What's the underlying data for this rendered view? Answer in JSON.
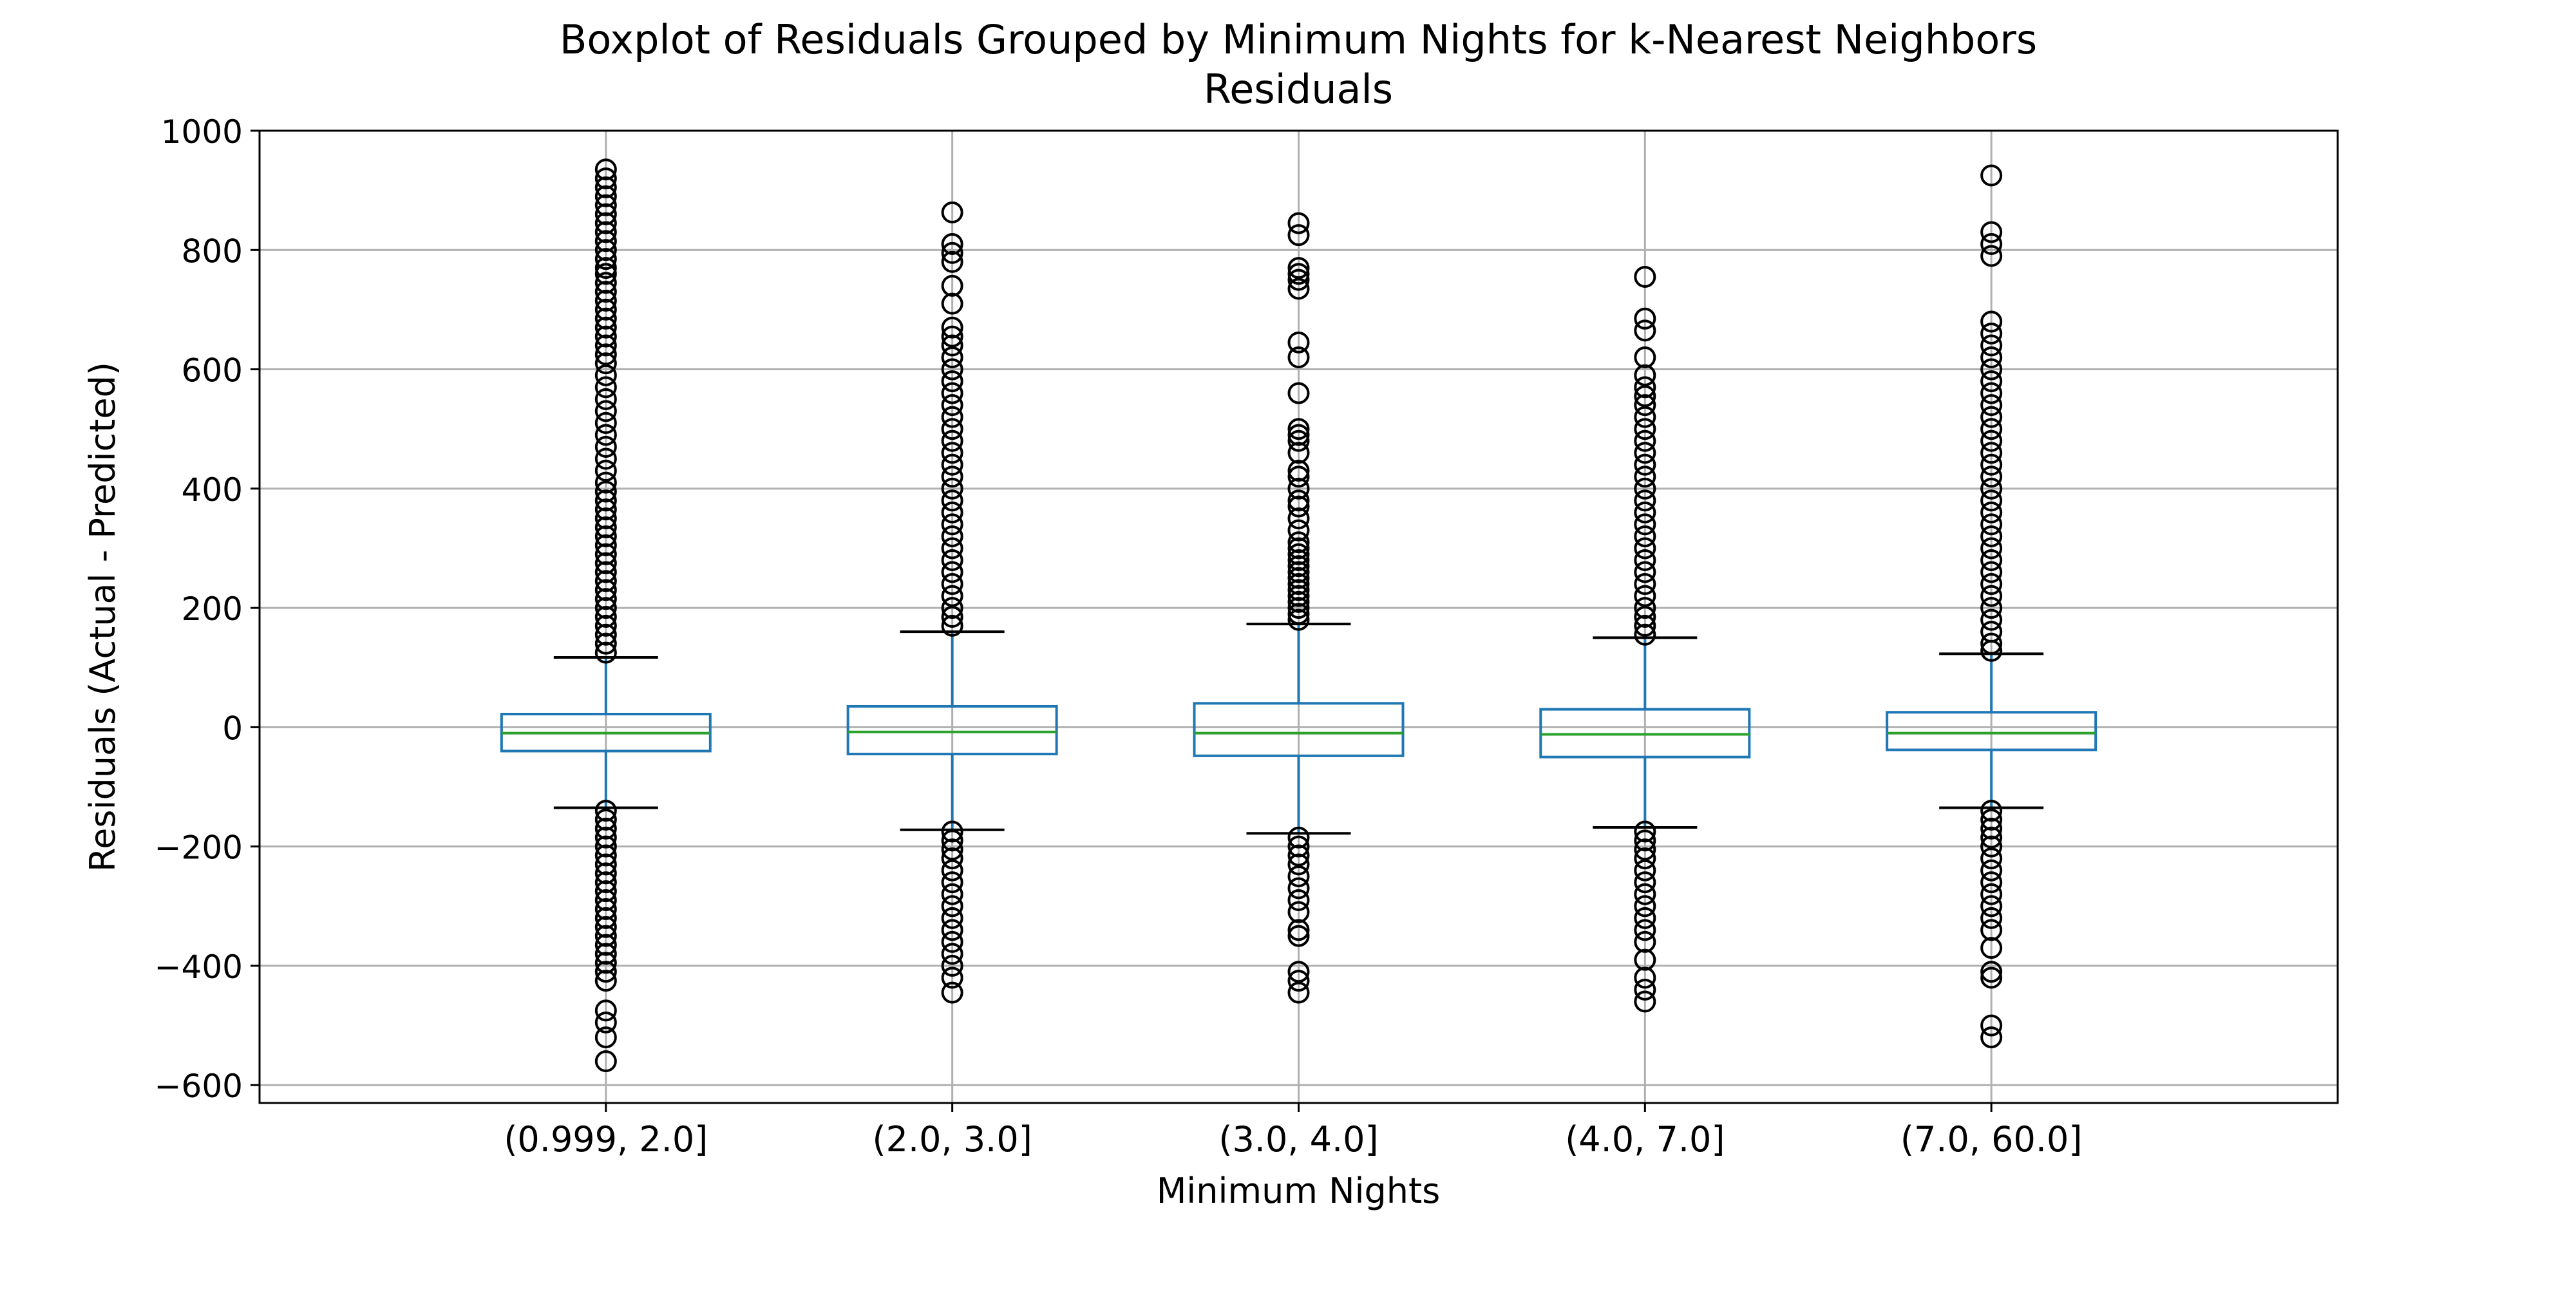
{
  "chart_data": {
    "type": "boxplot",
    "title": "Boxplot of Residuals Grouped by Minimum Nights for k-Nearest Neighbors",
    "subtitle": "Residuals",
    "xlabel": "Minimum Nights",
    "ylabel": "Residuals (Actual - Predicted)",
    "ylim": [
      -630,
      1000
    ],
    "y_ticks": [
      -600,
      -400,
      -200,
      0,
      200,
      400,
      600,
      800,
      1000
    ],
    "y_tick_labels": [
      "−600",
      "−400",
      "−200",
      "0",
      "200",
      "400",
      "600",
      "800",
      "1000"
    ],
    "grid": true,
    "categories": [
      "(0.999, 2.0]",
      "(2.0, 3.0]",
      "(3.0, 4.0]",
      "(4.0, 7.0]",
      "(7.0, 60.0]"
    ],
    "groups": [
      {
        "category": "(0.999, 2.0]",
        "q1": -40,
        "median": -10,
        "q3": 22,
        "whisker_low": -135,
        "whisker_high": 117,
        "outliers": [
          935,
          920,
          905,
          890,
          875,
          860,
          845,
          830,
          815,
          800,
          785,
          770,
          760,
          745,
          730,
          715,
          700,
          685,
          670,
          655,
          640,
          625,
          610,
          590,
          570,
          550,
          530,
          510,
          490,
          470,
          450,
          430,
          410,
          395,
          380,
          365,
          350,
          335,
          320,
          305,
          290,
          275,
          260,
          245,
          230,
          215,
          200,
          185,
          170,
          155,
          140,
          125,
          -140,
          -155,
          -170,
          -185,
          -200,
          -215,
          -230,
          -245,
          -260,
          -275,
          -290,
          -305,
          -320,
          -335,
          -350,
          -365,
          -380,
          -395,
          -410,
          -425,
          -475,
          -495,
          -520,
          -560
        ]
      },
      {
        "category": "(2.0, 3.0]",
        "q1": -45,
        "median": -8,
        "q3": 35,
        "whisker_low": -172,
        "whisker_high": 160,
        "outliers": [
          863,
          810,
          795,
          780,
          740,
          710,
          670,
          655,
          640,
          620,
          600,
          580,
          560,
          540,
          520,
          500,
          480,
          460,
          440,
          420,
          400,
          380,
          360,
          340,
          320,
          300,
          280,
          260,
          240,
          220,
          200,
          185,
          170,
          -175,
          -190,
          -205,
          -220,
          -240,
          -260,
          -280,
          -300,
          -320,
          -340,
          -360,
          -380,
          -400,
          -420,
          -445
        ]
      },
      {
        "category": "(3.0, 4.0]",
        "q1": -48,
        "median": -10,
        "q3": 40,
        "whisker_low": -178,
        "whisker_high": 173,
        "outliers": [
          845,
          825,
          770,
          760,
          750,
          735,
          645,
          620,
          560,
          500,
          490,
          480,
          460,
          430,
          420,
          400,
          380,
          370,
          350,
          330,
          310,
          300,
          290,
          280,
          270,
          260,
          250,
          240,
          230,
          220,
          210,
          200,
          190,
          180,
          -185,
          -200,
          -215,
          -230,
          -250,
          -270,
          -290,
          -310,
          -340,
          -350,
          -410,
          -425,
          -445
        ]
      },
      {
        "category": "(4.0, 7.0]",
        "q1": -50,
        "median": -12,
        "q3": 30,
        "whisker_low": -168,
        "whisker_high": 150,
        "outliers": [
          755,
          685,
          665,
          620,
          590,
          570,
          555,
          540,
          520,
          500,
          480,
          460,
          440,
          420,
          400,
          380,
          360,
          340,
          320,
          300,
          280,
          260,
          240,
          220,
          200,
          185,
          170,
          155,
          -175,
          -190,
          -205,
          -220,
          -240,
          -260,
          -280,
          -300,
          -320,
          -340,
          -360,
          -390,
          -420,
          -440,
          -460
        ]
      },
      {
        "category": "(7.0, 60.0]",
        "q1": -38,
        "median": -10,
        "q3": 25,
        "whisker_low": -135,
        "whisker_high": 123,
        "outliers": [
          925,
          830,
          810,
          790,
          680,
          660,
          640,
          620,
          600,
          580,
          560,
          540,
          520,
          500,
          480,
          460,
          440,
          420,
          400,
          380,
          360,
          340,
          320,
          300,
          280,
          260,
          240,
          220,
          200,
          180,
          160,
          140,
          128,
          -140,
          -155,
          -170,
          -185,
          -200,
          -220,
          -240,
          -260,
          -280,
          -300,
          -320,
          -340,
          -370,
          -410,
          -420,
          -500,
          -520
        ]
      }
    ],
    "colors": {
      "box": "#1f77b4",
      "median": "#2ca02c",
      "whisker_cap": "#000000",
      "outlier": "#000000",
      "grid": "#b0b0b0"
    }
  }
}
